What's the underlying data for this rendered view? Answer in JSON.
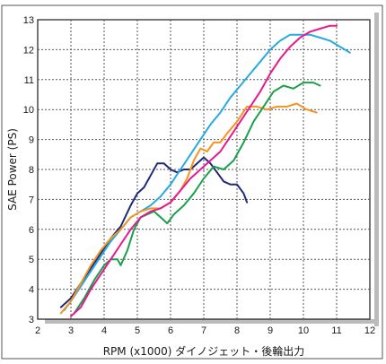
{
  "chart_data": {
    "type": "line",
    "xlabel": "RPM (x1000) ダイノジェット・後輪出力",
    "ylabel": "SAE Power (PS)",
    "xlim": [
      2,
      12
    ],
    "ylim": [
      3,
      13
    ],
    "xticks": [
      2,
      3,
      4,
      5,
      6,
      7,
      8,
      9,
      10,
      11,
      12
    ],
    "yticks": [
      3,
      4,
      5,
      6,
      7,
      8,
      9,
      10,
      11,
      12,
      13
    ],
    "grid": true,
    "legend": "none",
    "series": [
      {
        "color": "#1e2a78",
        "x": [
          2.7,
          3.0,
          3.3,
          3.6,
          3.9,
          4.2,
          4.5,
          4.8,
          5.0,
          5.2,
          5.4,
          5.6,
          5.8,
          6.0,
          6.2,
          6.4,
          6.6,
          6.8,
          7.0,
          7.2,
          7.4,
          7.6,
          7.8,
          8.0,
          8.2,
          8.3
        ],
        "y": [
          3.4,
          3.7,
          4.2,
          4.7,
          5.2,
          5.7,
          6.1,
          6.8,
          7.2,
          7.4,
          7.8,
          8.2,
          8.2,
          8.0,
          7.9,
          8.0,
          8.0,
          8.2,
          8.4,
          8.2,
          7.9,
          7.6,
          7.5,
          7.5,
          7.2,
          6.9
        ]
      },
      {
        "color": "#27a9e1",
        "x": [
          2.8,
          3.0,
          3.3,
          3.6,
          3.9,
          4.2,
          4.5,
          4.8,
          5.1,
          5.4,
          5.7,
          6.0,
          6.3,
          6.6,
          6.9,
          7.2,
          7.5,
          7.8,
          8.1,
          8.4,
          8.7,
          9.0,
          9.3,
          9.6,
          9.9,
          10.2,
          10.5,
          10.8,
          11.1,
          11.4
        ],
        "y": [
          3.3,
          3.6,
          4.1,
          4.6,
          5.1,
          5.6,
          6.0,
          6.4,
          6.6,
          6.8,
          7.1,
          7.5,
          8.0,
          8.5,
          9.0,
          9.5,
          9.9,
          10.4,
          10.8,
          11.2,
          11.6,
          12.0,
          12.3,
          12.5,
          12.5,
          12.5,
          12.4,
          12.3,
          12.1,
          11.9
        ]
      },
      {
        "color": "#f7941d",
        "x": [
          2.7,
          3.0,
          3.3,
          3.6,
          3.9,
          4.2,
          4.5,
          4.8,
          5.1,
          5.4,
          5.7,
          6.0,
          6.3,
          6.5,
          6.7,
          6.9,
          7.1,
          7.3,
          7.5,
          7.7,
          8.0,
          8.3,
          8.6,
          8.9,
          9.2,
          9.5,
          9.8,
          10.1,
          10.4
        ],
        "y": [
          3.2,
          3.6,
          4.2,
          4.8,
          5.3,
          5.7,
          6.0,
          6.4,
          6.6,
          6.7,
          6.7,
          6.9,
          7.3,
          7.7,
          8.3,
          8.7,
          8.6,
          8.9,
          8.9,
          9.2,
          9.6,
          10.1,
          10.1,
          10.0,
          10.1,
          10.1,
          10.2,
          10.0,
          9.9
        ]
      },
      {
        "color": "#1aa04b",
        "x": [
          3.1,
          3.4,
          3.7,
          4.0,
          4.2,
          4.4,
          4.5,
          4.7,
          4.9,
          5.1,
          5.3,
          5.5,
          5.7,
          5.9,
          6.1,
          6.4,
          6.7,
          7.0,
          7.3,
          7.6,
          7.9,
          8.2,
          8.5,
          8.8,
          9.1,
          9.4,
          9.7,
          10.0,
          10.3,
          10.5
        ],
        "y": [
          3.2,
          3.7,
          4.3,
          4.8,
          5.0,
          5.0,
          4.8,
          5.3,
          6.0,
          6.4,
          6.5,
          6.6,
          6.4,
          6.2,
          6.5,
          6.8,
          7.2,
          7.7,
          8.1,
          8.0,
          8.3,
          8.9,
          9.6,
          10.1,
          10.6,
          10.8,
          10.7,
          10.9,
          10.9,
          10.8
        ]
      },
      {
        "color": "#e6198f",
        "x": [
          3.0,
          3.3,
          3.6,
          3.9,
          4.2,
          4.5,
          4.8,
          5.1,
          5.4,
          5.7,
          6.0,
          6.3,
          6.6,
          6.9,
          7.2,
          7.5,
          7.8,
          8.1,
          8.4,
          8.7,
          9.0,
          9.3,
          9.6,
          9.9,
          10.2,
          10.5,
          10.8,
          11.0
        ],
        "y": [
          3.1,
          3.4,
          4.0,
          4.5,
          5.0,
          5.5,
          6.0,
          6.4,
          6.6,
          6.7,
          6.9,
          7.3,
          7.7,
          8.0,
          8.3,
          8.6,
          9.1,
          9.6,
          10.1,
          10.6,
          11.2,
          11.7,
          12.1,
          12.4,
          12.6,
          12.7,
          12.8,
          12.8
        ]
      }
    ]
  }
}
